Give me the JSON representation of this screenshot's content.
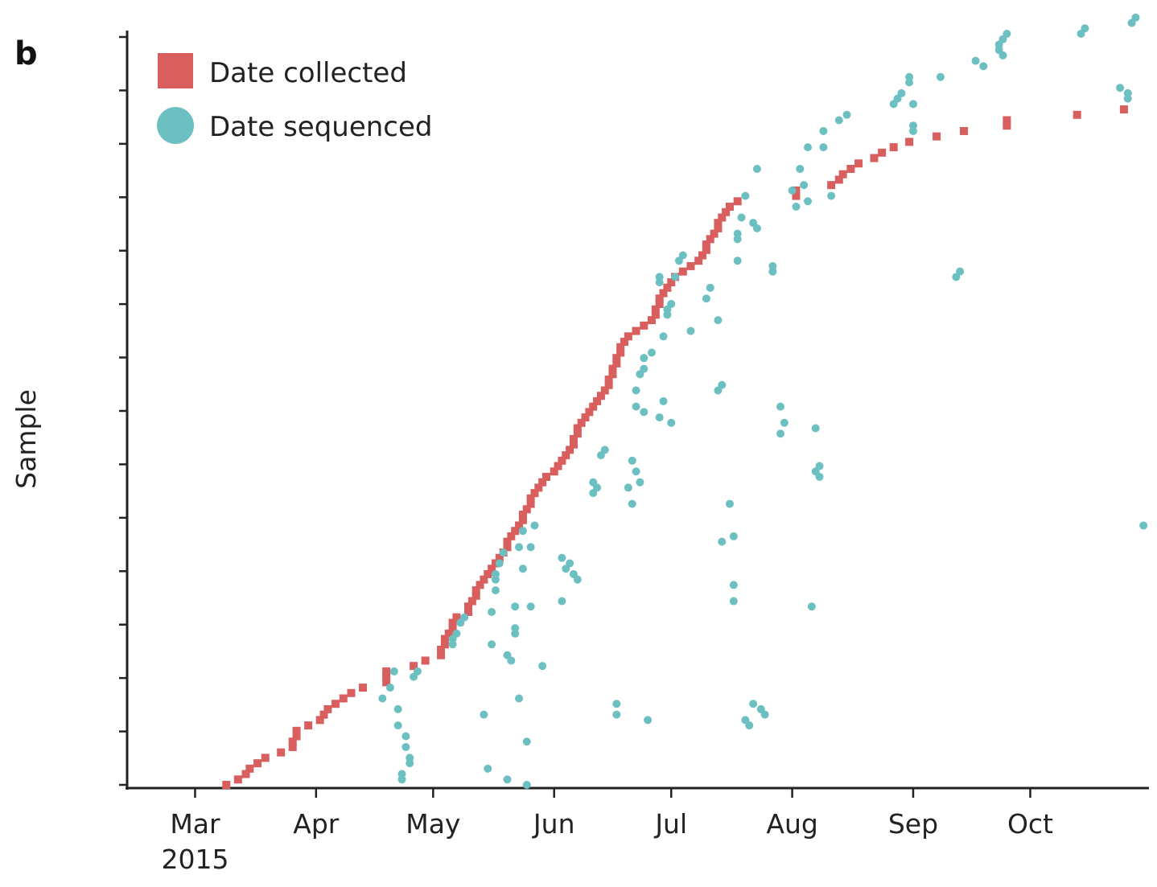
{
  "panel_label": "b",
  "chart_data": {
    "type": "scatter",
    "ylabel": "Sample",
    "xlabel": "",
    "x_axis": {
      "type": "date",
      "tick_labels": [
        "Mar",
        "Apr",
        "May",
        "Jun",
        "Jul",
        "Aug",
        "Sep",
        "Oct"
      ],
      "tick_dates": [
        "2015-03-01",
        "2015-04-01",
        "2015-05-01",
        "2015-06-01",
        "2015-07-01",
        "2015-08-01",
        "2015-09-01",
        "2015-10-01"
      ],
      "year_label": "2015",
      "xlim": [
        "2015-02-12",
        "2015-10-31"
      ]
    },
    "ylim": [
      1,
      140
    ],
    "y_tick_count": 15,
    "legend": {
      "placement": "top-left"
    },
    "series": [
      {
        "name": "Date collected",
        "marker": "square",
        "color": "#d95f5f",
        "points": []
      },
      {
        "name": "Date sequenced",
        "marker": "circle",
        "color": "#6cc0c2",
        "points": []
      }
    ],
    "collected_dates": [
      "2015-03-09",
      "2015-03-12",
      "2015-03-14",
      "2015-03-15",
      "2015-03-17",
      "2015-03-19",
      "2015-03-23",
      "2015-03-26",
      "2015-03-26",
      "2015-03-27",
      "2015-03-27",
      "2015-03-30",
      "2015-04-02",
      "2015-04-03",
      "2015-04-04",
      "2015-04-06",
      "2015-04-08",
      "2015-04-10",
      "2015-04-13",
      "2015-04-19",
      "2015-04-19",
      "2015-04-19",
      "2015-04-26",
      "2015-04-29",
      "2015-05-03",
      "2015-05-03",
      "2015-05-04",
      "2015-05-04",
      "2015-05-05",
      "2015-05-06",
      "2015-05-06",
      "2015-05-07",
      "2015-05-10",
      "2015-05-10",
      "2015-05-11",
      "2015-05-12",
      "2015-05-12",
      "2015-05-13",
      "2015-05-14",
      "2015-05-15",
      "2015-05-16",
      "2015-05-17",
      "2015-05-18",
      "2015-05-19",
      "2015-05-20",
      "2015-05-20",
      "2015-05-21",
      "2015-05-22",
      "2015-05-23",
      "2015-05-24",
      "2015-05-24",
      "2015-05-25",
      "2015-05-26",
      "2015-05-26",
      "2015-05-27",
      "2015-05-28",
      "2015-05-29",
      "2015-05-30",
      "2015-06-01",
      "2015-06-02",
      "2015-06-03",
      "2015-06-04",
      "2015-06-05",
      "2015-06-06",
      "2015-06-06",
      "2015-06-07",
      "2015-06-07",
      "2015-06-08",
      "2015-06-09",
      "2015-06-10",
      "2015-06-11",
      "2015-06-12",
      "2015-06-13",
      "2015-06-14",
      "2015-06-15",
      "2015-06-15",
      "2015-06-16",
      "2015-06-16",
      "2015-06-17",
      "2015-06-17",
      "2015-06-18",
      "2015-06-18",
      "2015-06-19",
      "2015-06-20",
      "2015-06-22",
      "2015-06-24",
      "2015-06-26",
      "2015-06-27",
      "2015-06-27",
      "2015-06-28",
      "2015-06-28",
      "2015-06-29",
      "2015-06-30",
      "2015-07-01",
      "2015-07-02",
      "2015-07-04",
      "2015-07-06",
      "2015-07-08",
      "2015-07-09",
      "2015-07-10",
      "2015-07-10",
      "2015-07-11",
      "2015-07-12",
      "2015-07-13",
      "2015-07-13",
      "2015-07-14",
      "2015-07-15",
      "2015-07-16",
      "2015-07-18",
      "2015-08-02",
      "2015-08-02",
      "2015-08-11",
      "2015-08-13",
      "2015-08-14",
      "2015-08-16",
      "2015-08-18",
      "2015-08-22",
      "2015-08-24",
      "2015-08-27",
      "2015-08-31",
      "2015-09-07",
      "2015-09-14",
      "2015-09-25",
      "2015-09-25",
      "2015-10-13",
      "2015-10-25"
    ],
    "sequenced_points": [
      [
        "2015-04-18",
        17
      ],
      [
        "2015-04-20",
        19
      ],
      [
        "2015-04-21",
        22
      ],
      [
        "2015-04-22",
        15
      ],
      [
        "2015-04-22",
        12
      ],
      [
        "2015-04-23",
        3
      ],
      [
        "2015-04-23",
        2
      ],
      [
        "2015-04-24",
        10
      ],
      [
        "2015-04-24",
        8
      ],
      [
        "2015-04-25",
        6
      ],
      [
        "2015-04-25",
        5
      ],
      [
        "2015-04-26",
        21
      ],
      [
        "2015-04-27",
        22
      ],
      [
        "2015-05-06",
        27
      ],
      [
        "2015-05-06",
        28
      ],
      [
        "2015-05-07",
        29
      ],
      [
        "2015-05-08",
        31
      ],
      [
        "2015-05-09",
        32
      ],
      [
        "2015-05-14",
        14
      ],
      [
        "2015-05-15",
        4
      ],
      [
        "2015-05-16",
        27
      ],
      [
        "2015-05-16",
        33
      ],
      [
        "2015-05-17",
        37
      ],
      [
        "2015-05-17",
        39
      ],
      [
        "2015-05-17",
        40
      ],
      [
        "2015-05-18",
        42
      ],
      [
        "2015-05-19",
        44
      ],
      [
        "2015-05-20",
        25
      ],
      [
        "2015-05-20",
        2
      ],
      [
        "2015-05-21",
        24
      ],
      [
        "2015-05-22",
        29
      ],
      [
        "2015-05-22",
        30
      ],
      [
        "2015-05-22",
        34
      ],
      [
        "2015-05-23",
        45
      ],
      [
        "2015-05-23",
        17
      ],
      [
        "2015-05-24",
        41
      ],
      [
        "2015-05-24",
        48
      ],
      [
        "2015-05-25",
        9
      ],
      [
        "2015-05-25",
        1
      ],
      [
        "2015-05-26",
        34
      ],
      [
        "2015-05-26",
        45
      ],
      [
        "2015-05-27",
        49
      ],
      [
        "2015-05-29",
        23
      ],
      [
        "2015-06-03",
        35
      ],
      [
        "2015-06-03",
        43
      ],
      [
        "2015-06-04",
        41
      ],
      [
        "2015-06-05",
        42
      ],
      [
        "2015-06-06",
        40
      ],
      [
        "2015-06-07",
        39
      ],
      [
        "2015-06-11",
        55
      ],
      [
        "2015-06-11",
        57
      ],
      [
        "2015-06-12",
        56
      ],
      [
        "2015-06-13",
        62
      ],
      [
        "2015-06-14",
        63
      ],
      [
        "2015-06-17",
        14
      ],
      [
        "2015-06-17",
        16
      ],
      [
        "2015-06-25",
        13
      ],
      [
        "2015-06-23",
        77
      ],
      [
        "2015-06-24",
        78
      ],
      [
        "2015-06-24",
        80
      ],
      [
        "2015-06-22",
        71
      ],
      [
        "2015-06-20",
        56
      ],
      [
        "2015-06-21",
        61
      ],
      [
        "2015-06-22",
        74
      ],
      [
        "2015-06-23",
        57
      ],
      [
        "2015-06-21",
        53
      ],
      [
        "2015-06-22",
        59
      ],
      [
        "2015-06-24",
        70
      ],
      [
        "2015-06-26",
        81
      ],
      [
        "2015-06-28",
        69
      ],
      [
        "2015-06-28",
        94
      ],
      [
        "2015-06-28",
        95
      ],
      [
        "2015-06-29",
        84
      ],
      [
        "2015-06-29",
        72
      ],
      [
        "2015-06-30",
        88
      ],
      [
        "2015-06-30",
        89
      ],
      [
        "2015-07-01",
        90
      ],
      [
        "2015-07-01",
        68
      ],
      [
        "2015-07-02",
        95
      ],
      [
        "2015-07-03",
        98
      ],
      [
        "2015-07-04",
        99
      ],
      [
        "2015-07-06",
        85
      ],
      [
        "2015-07-10",
        91
      ],
      [
        "2015-07-11",
        93
      ],
      [
        "2015-07-13",
        74
      ],
      [
        "2015-07-14",
        75
      ],
      [
        "2015-07-13",
        87
      ],
      [
        "2015-07-14",
        46
      ],
      [
        "2015-07-16",
        53
      ],
      [
        "2015-07-17",
        35
      ],
      [
        "2015-07-17",
        38
      ],
      [
        "2015-07-17",
        47
      ],
      [
        "2015-07-18",
        98
      ],
      [
        "2015-07-18",
        102
      ],
      [
        "2015-07-18",
        103
      ],
      [
        "2015-07-19",
        106
      ],
      [
        "2015-07-20",
        110
      ],
      [
        "2015-07-20",
        13
      ],
      [
        "2015-07-21",
        12
      ],
      [
        "2015-07-22",
        105
      ],
      [
        "2015-07-22",
        16
      ],
      [
        "2015-07-23",
        104
      ],
      [
        "2015-07-23",
        115
      ],
      [
        "2015-07-24",
        15
      ],
      [
        "2015-07-25",
        14
      ],
      [
        "2015-07-27",
        96
      ],
      [
        "2015-07-27",
        97
      ],
      [
        "2015-07-29",
        66
      ],
      [
        "2015-07-29",
        71
      ],
      [
        "2015-07-30",
        68
      ],
      [
        "2015-08-01",
        111
      ],
      [
        "2015-08-02",
        108
      ],
      [
        "2015-08-03",
        115
      ],
      [
        "2015-08-04",
        112
      ],
      [
        "2015-08-05",
        119
      ],
      [
        "2015-08-05",
        109
      ],
      [
        "2015-08-06",
        34
      ],
      [
        "2015-08-07",
        59
      ],
      [
        "2015-08-07",
        67
      ],
      [
        "2015-08-08",
        58
      ],
      [
        "2015-08-08",
        60
      ],
      [
        "2015-08-09",
        122
      ],
      [
        "2015-08-09",
        119
      ],
      [
        "2015-08-11",
        110
      ],
      [
        "2015-08-13",
        124
      ],
      [
        "2015-08-15",
        125
      ],
      [
        "2015-08-27",
        127
      ],
      [
        "2015-08-28",
        128
      ],
      [
        "2015-08-29",
        129
      ],
      [
        "2015-08-31",
        131
      ],
      [
        "2015-08-31",
        132
      ],
      [
        "2015-09-01",
        127
      ],
      [
        "2015-09-01",
        122
      ],
      [
        "2015-09-01",
        123
      ],
      [
        "2015-09-08",
        132
      ],
      [
        "2015-09-12",
        95
      ],
      [
        "2015-09-13",
        96
      ],
      [
        "2015-09-17",
        135
      ],
      [
        "2015-09-19",
        134
      ],
      [
        "2015-09-23",
        137
      ],
      [
        "2015-09-23",
        138
      ],
      [
        "2015-09-24",
        139
      ],
      [
        "2015-09-24",
        136
      ],
      [
        "2015-09-25",
        140
      ],
      [
        "2015-10-14",
        140
      ],
      [
        "2015-10-15",
        141
      ],
      [
        "2015-10-24",
        130
      ],
      [
        "2015-10-26",
        128
      ],
      [
        "2015-10-26",
        129
      ],
      [
        "2015-10-27",
        142
      ],
      [
        "2015-10-28",
        143
      ],
      [
        "2015-10-30",
        49
      ]
    ]
  }
}
